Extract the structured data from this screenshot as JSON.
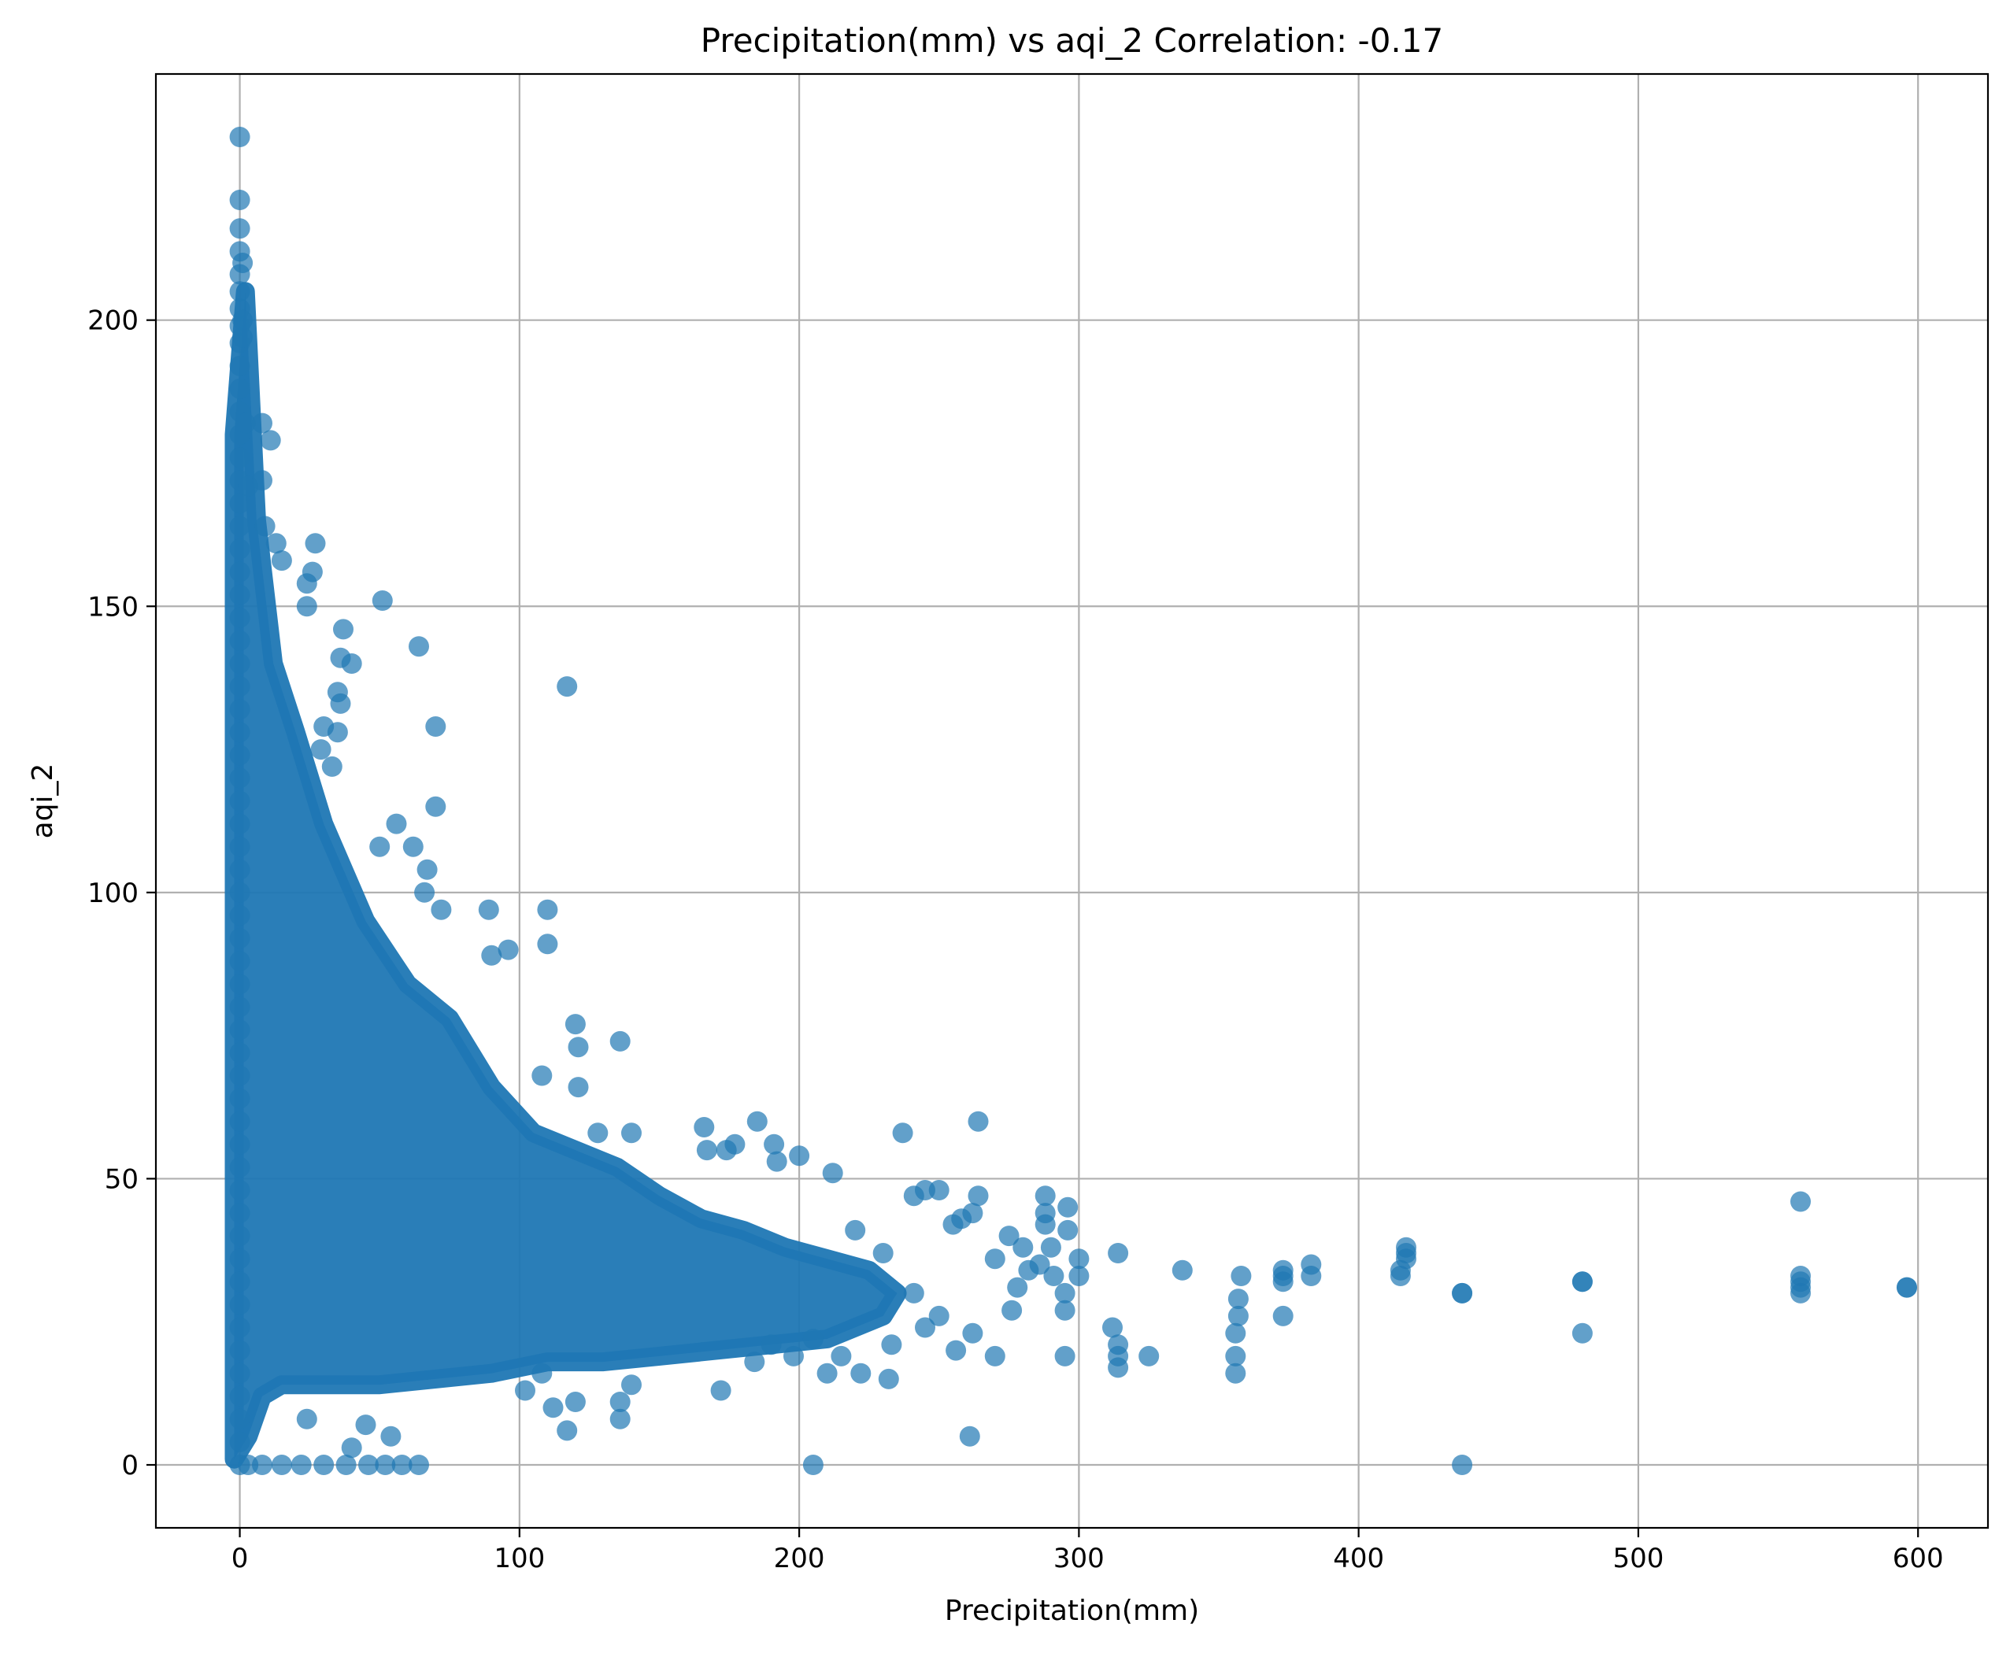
{
  "chart_data": {
    "type": "scatter",
    "title": "Precipitation(mm) vs aqi_2 Correlation: -0.17",
    "xlabel": "Precipitation(mm)",
    "ylabel": "aqi_2",
    "xlim": [
      -30,
      625
    ],
    "ylim": [
      -11,
      243
    ],
    "xticks": [
      0,
      100,
      200,
      300,
      400,
      500,
      600
    ],
    "yticks": [
      0,
      50,
      100,
      150,
      200
    ],
    "grid": true,
    "legend": "none",
    "marker_color": "#1f77b4",
    "marker_alpha": 0.7,
    "points": [
      [
        0,
        232
      ],
      [
        0,
        221
      ],
      [
        0,
        216
      ],
      [
        0,
        212
      ],
      [
        0,
        208
      ],
      [
        0,
        205
      ],
      [
        0,
        202
      ],
      [
        0,
        199
      ],
      [
        0,
        196
      ],
      [
        0,
        192
      ],
      [
        0,
        188
      ],
      [
        0,
        184
      ],
      [
        0,
        180
      ],
      [
        0,
        176
      ],
      [
        0,
        172
      ],
      [
        0,
        168
      ],
      [
        0,
        164
      ],
      [
        0,
        160
      ],
      [
        0,
        156
      ],
      [
        0,
        152
      ],
      [
        0,
        148
      ],
      [
        0,
        144
      ],
      [
        0,
        140
      ],
      [
        0,
        136
      ],
      [
        0,
        132
      ],
      [
        0,
        128
      ],
      [
        0,
        124
      ],
      [
        0,
        120
      ],
      [
        0,
        116
      ],
      [
        0,
        112
      ],
      [
        0,
        108
      ],
      [
        0,
        104
      ],
      [
        0,
        100
      ],
      [
        0,
        96
      ],
      [
        0,
        92
      ],
      [
        0,
        88
      ],
      [
        0,
        84
      ],
      [
        0,
        80
      ],
      [
        0,
        76
      ],
      [
        0,
        72
      ],
      [
        0,
        68
      ],
      [
        0,
        64
      ],
      [
        0,
        60
      ],
      [
        0,
        56
      ],
      [
        0,
        52
      ],
      [
        0,
        48
      ],
      [
        0,
        44
      ],
      [
        0,
        40
      ],
      [
        0,
        36
      ],
      [
        0,
        32
      ],
      [
        0,
        28
      ],
      [
        0,
        24
      ],
      [
        0,
        20
      ],
      [
        0,
        16
      ],
      [
        0,
        12
      ],
      [
        0,
        8
      ],
      [
        0,
        4
      ],
      [
        0,
        0
      ],
      [
        1,
        210
      ],
      [
        1,
        200
      ],
      [
        1,
        197
      ],
      [
        2,
        182
      ],
      [
        3,
        171
      ],
      [
        8,
        182
      ],
      [
        11,
        179
      ],
      [
        8,
        172
      ],
      [
        9,
        164
      ],
      [
        13,
        161
      ],
      [
        15,
        158
      ],
      [
        24,
        154
      ],
      [
        26,
        156
      ],
      [
        27,
        161
      ],
      [
        24,
        150
      ],
      [
        37,
        146
      ],
      [
        36,
        141
      ],
      [
        35,
        135
      ],
      [
        36,
        133
      ],
      [
        30,
        129
      ],
      [
        29,
        125
      ],
      [
        33,
        122
      ],
      [
        35,
        128
      ],
      [
        40,
        140
      ],
      [
        51,
        151
      ],
      [
        64,
        143
      ],
      [
        70,
        129
      ],
      [
        70,
        115
      ],
      [
        56,
        112
      ],
      [
        50,
        108
      ],
      [
        62,
        108
      ],
      [
        67,
        104
      ],
      [
        66,
        100
      ],
      [
        72,
        97
      ],
      [
        89,
        97
      ],
      [
        90,
        89
      ],
      [
        96,
        90
      ],
      [
        110,
        97
      ],
      [
        110,
        91
      ],
      [
        117,
        136
      ],
      [
        120,
        77
      ],
      [
        121,
        73
      ],
      [
        121,
        66
      ],
      [
        108,
        68
      ],
      [
        136,
        74
      ],
      [
        128,
        58
      ],
      [
        140,
        58
      ],
      [
        166,
        59
      ],
      [
        167,
        55
      ],
      [
        174,
        55
      ],
      [
        177,
        56
      ],
      [
        185,
        60
      ],
      [
        191,
        56
      ],
      [
        192,
        53
      ],
      [
        200,
        54
      ],
      [
        212,
        51
      ],
      [
        237,
        58
      ],
      [
        264,
        60
      ],
      [
        3,
        0
      ],
      [
        8,
        0
      ],
      [
        15,
        0
      ],
      [
        22,
        0
      ],
      [
        30,
        0
      ],
      [
        38,
        0
      ],
      [
        46,
        0
      ],
      [
        52,
        0
      ],
      [
        58,
        0
      ],
      [
        64,
        0
      ],
      [
        205,
        0
      ],
      [
        437,
        0
      ],
      [
        261,
        5
      ],
      [
        54,
        5
      ],
      [
        40,
        3
      ],
      [
        45,
        7
      ],
      [
        24,
        8
      ],
      [
        117,
        6
      ],
      [
        136,
        8
      ],
      [
        220,
        41
      ],
      [
        230,
        37
      ],
      [
        241,
        47
      ],
      [
        245,
        48
      ],
      [
        250,
        48
      ],
      [
        255,
        42
      ],
      [
        258,
        43
      ],
      [
        262,
        44
      ],
      [
        264,
        47
      ],
      [
        270,
        36
      ],
      [
        275,
        40
      ],
      [
        280,
        38
      ],
      [
        288,
        47
      ],
      [
        288,
        44
      ],
      [
        288,
        42
      ],
      [
        290,
        38
      ],
      [
        296,
        45
      ],
      [
        296,
        41
      ],
      [
        300,
        36
      ],
      [
        300,
        33
      ],
      [
        295,
        30
      ],
      [
        295,
        27
      ],
      [
        295,
        19
      ],
      [
        312,
        24
      ],
      [
        314,
        21
      ],
      [
        314,
        19
      ],
      [
        314,
        17
      ],
      [
        325,
        19
      ],
      [
        314,
        37
      ],
      [
        337,
        34
      ],
      [
        356,
        16
      ],
      [
        356,
        19
      ],
      [
        356,
        23
      ],
      [
        357,
        26
      ],
      [
        357,
        29
      ],
      [
        358,
        33
      ],
      [
        373,
        26
      ],
      [
        373,
        32
      ],
      [
        373,
        33
      ],
      [
        373,
        34
      ],
      [
        383,
        33
      ],
      [
        383,
        35
      ],
      [
        415,
        33
      ],
      [
        415,
        34
      ],
      [
        417,
        36
      ],
      [
        417,
        37
      ],
      [
        417,
        38
      ],
      [
        437,
        30
      ],
      [
        437,
        30
      ],
      [
        480,
        23
      ],
      [
        480,
        32
      ],
      [
        480,
        32
      ],
      [
        558,
        30
      ],
      [
        558,
        31
      ],
      [
        558,
        32
      ],
      [
        558,
        33
      ],
      [
        558,
        46
      ],
      [
        596,
        31
      ],
      [
        596,
        31
      ],
      [
        232,
        15
      ],
      [
        233,
        21
      ],
      [
        241,
        30
      ],
      [
        245,
        24
      ],
      [
        250,
        26
      ],
      [
        256,
        20
      ],
      [
        262,
        23
      ],
      [
        270,
        19
      ],
      [
        276,
        27
      ],
      [
        278,
        31
      ],
      [
        282,
        34
      ],
      [
        286,
        35
      ],
      [
        291,
        33
      ],
      [
        210,
        16
      ],
      [
        215,
        19
      ],
      [
        222,
        16
      ],
      [
        205,
        22
      ],
      [
        198,
        19
      ],
      [
        190,
        21
      ],
      [
        184,
        18
      ],
      [
        172,
        13
      ],
      [
        136,
        11
      ],
      [
        140,
        14
      ],
      [
        120,
        11
      ],
      [
        112,
        10
      ],
      [
        102,
        13
      ],
      [
        108,
        16
      ]
    ]
  }
}
